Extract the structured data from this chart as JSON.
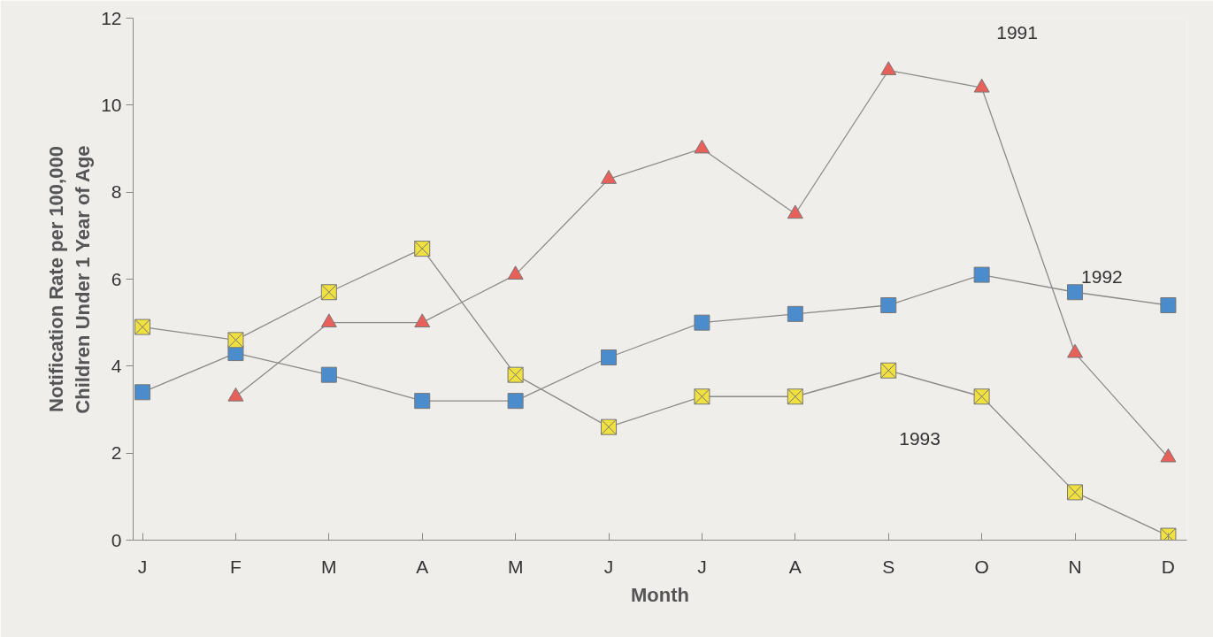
{
  "chart_data": {
    "type": "line",
    "xlabel": "Month",
    "ylabel": "Notification Rate per 100,000\nChildren Under 1 Year of Age",
    "categories": [
      "J",
      "F",
      "M",
      "A",
      "M",
      "J",
      "J",
      "A",
      "S",
      "O",
      "N",
      "D"
    ],
    "ylim": [
      0,
      12
    ],
    "yticks": [
      0,
      2,
      4,
      6,
      8,
      10,
      12
    ],
    "grid": false,
    "series": [
      {
        "name": "1991",
        "color": "#e8605a",
        "marker": "triangle",
        "values": [
          null,
          3.3,
          5.0,
          5.0,
          6.1,
          8.3,
          9.0,
          7.5,
          10.8,
          10.4,
          4.3,
          1.9
        ]
      },
      {
        "name": "1992",
        "color": "#4a8ccc",
        "marker": "square",
        "values": [
          3.4,
          4.3,
          3.8,
          3.2,
          3.2,
          4.2,
          5.0,
          5.2,
          5.4,
          6.1,
          5.7,
          5.4
        ]
      },
      {
        "name": "1993",
        "color": "#f0e040",
        "marker": "cross",
        "values": [
          4.9,
          4.6,
          5.7,
          6.7,
          3.8,
          2.6,
          3.3,
          3.3,
          3.9,
          3.3,
          1.1,
          0.1
        ]
      }
    ]
  }
}
